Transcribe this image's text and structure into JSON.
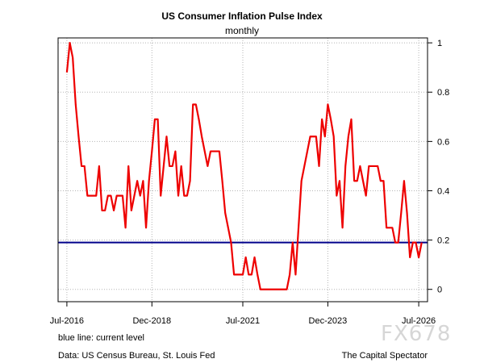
{
  "chart_data": {
    "type": "line",
    "title": "US Consumer Inflation Pulse Index",
    "subtitle": "monthly",
    "x_tick_labels": [
      "Jul-2016",
      "Dec-2018",
      "Jul-2021",
      "Dec-2023",
      "Jul-2026"
    ],
    "x_tick_dates": [
      "2016-07",
      "2018-12",
      "2021-07",
      "2023-12",
      "2026-07"
    ],
    "xlim": [
      "2016-04",
      "2026-10"
    ],
    "y_tick_labels": [
      "0",
      "0.2",
      "0.4",
      "0.6",
      "0.8",
      "1"
    ],
    "y_ticks": [
      0,
      0.2,
      0.4,
      0.6,
      0.8,
      1
    ],
    "ylim": [
      -0.05,
      1.02
    ],
    "y_axis_side": "right",
    "grid": true,
    "series": [
      {
        "color": "#ee0000",
        "points": [
          [
            "2016-07",
            0.88
          ],
          [
            "2016-08",
            1.0
          ],
          [
            "2016-09",
            0.94
          ],
          [
            "2016-10",
            0.75
          ],
          [
            "2016-11",
            0.62
          ],
          [
            "2016-12",
            0.5
          ],
          [
            "2017-01",
            0.5
          ],
          [
            "2017-02",
            0.38
          ],
          [
            "2017-03",
            0.38
          ],
          [
            "2017-04",
            0.38
          ],
          [
            "2017-05",
            0.38
          ],
          [
            "2017-06",
            0.5
          ],
          [
            "2017-07",
            0.32
          ],
          [
            "2017-08",
            0.32
          ],
          [
            "2017-09",
            0.38
          ],
          [
            "2017-10",
            0.38
          ],
          [
            "2017-11",
            0.32
          ],
          [
            "2017-12",
            0.38
          ],
          [
            "2018-01",
            0.38
          ],
          [
            "2018-02",
            0.38
          ],
          [
            "2018-03",
            0.25
          ],
          [
            "2018-04",
            0.5
          ],
          [
            "2018-05",
            0.32
          ],
          [
            "2018-06",
            0.38
          ],
          [
            "2018-07",
            0.44
          ],
          [
            "2018-08",
            0.38
          ],
          [
            "2018-09",
            0.44
          ],
          [
            "2018-10",
            0.25
          ],
          [
            "2018-11",
            0.44
          ],
          [
            "2018-12",
            0.56
          ],
          [
            "2019-01",
            0.69
          ],
          [
            "2019-02",
            0.69
          ],
          [
            "2019-03",
            0.38
          ],
          [
            "2019-04",
            0.5
          ],
          [
            "2019-05",
            0.62
          ],
          [
            "2019-06",
            0.5
          ],
          [
            "2019-07",
            0.5
          ],
          [
            "2019-08",
            0.56
          ],
          [
            "2019-09",
            0.38
          ],
          [
            "2019-10",
            0.5
          ],
          [
            "2019-11",
            0.38
          ],
          [
            "2019-12",
            0.38
          ],
          [
            "2020-01",
            0.44
          ],
          [
            "2020-02",
            0.75
          ],
          [
            "2020-03",
            0.75
          ],
          [
            "2020-04",
            0.69
          ],
          [
            "2020-05",
            0.62
          ],
          [
            "2020-06",
            0.56
          ],
          [
            "2020-07",
            0.5
          ],
          [
            "2020-08",
            0.56
          ],
          [
            "2020-09",
            0.56
          ],
          [
            "2020-10",
            0.56
          ],
          [
            "2020-11",
            0.56
          ],
          [
            "2020-12",
            0.44
          ],
          [
            "2021-01",
            0.31
          ],
          [
            "2021-02",
            0.25
          ],
          [
            "2021-03",
            0.19
          ],
          [
            "2021-04",
            0.06
          ],
          [
            "2021-05",
            0.06
          ],
          [
            "2021-06",
            0.06
          ],
          [
            "2021-07",
            0.06
          ],
          [
            "2021-08",
            0.13
          ],
          [
            "2021-09",
            0.06
          ],
          [
            "2021-10",
            0.06
          ],
          [
            "2021-11",
            0.13
          ],
          [
            "2021-12",
            0.06
          ],
          [
            "2022-01",
            0.0
          ],
          [
            "2022-02",
            0.0
          ],
          [
            "2022-03",
            0.0
          ],
          [
            "2022-04",
            0.0
          ],
          [
            "2022-05",
            0.0
          ],
          [
            "2022-06",
            0.0
          ],
          [
            "2022-07",
            0.0
          ],
          [
            "2022-08",
            0.0
          ],
          [
            "2022-09",
            0.0
          ],
          [
            "2022-10",
            0.0
          ],
          [
            "2022-11",
            0.06
          ],
          [
            "2022-12",
            0.19
          ],
          [
            "2023-01",
            0.06
          ],
          [
            "2023-02",
            0.25
          ],
          [
            "2023-03",
            0.44
          ],
          [
            "2023-04",
            0.5
          ],
          [
            "2023-05",
            0.56
          ],
          [
            "2023-06",
            0.62
          ],
          [
            "2023-07",
            0.62
          ],
          [
            "2023-08",
            0.62
          ],
          [
            "2023-09",
            0.5
          ],
          [
            "2023-10",
            0.69
          ],
          [
            "2023-11",
            0.62
          ],
          [
            "2023-12",
            0.75
          ],
          [
            "2024-01",
            0.69
          ],
          [
            "2024-02",
            0.62
          ],
          [
            "2024-03",
            0.38
          ],
          [
            "2024-04",
            0.44
          ],
          [
            "2024-05",
            0.25
          ],
          [
            "2024-06",
            0.5
          ],
          [
            "2024-07",
            0.62
          ],
          [
            "2024-08",
            0.69
          ],
          [
            "2024-09",
            0.44
          ],
          [
            "2024-10",
            0.44
          ],
          [
            "2024-11",
            0.5
          ],
          [
            "2024-12",
            0.44
          ],
          [
            "2025-01",
            0.38
          ],
          [
            "2025-02",
            0.5
          ],
          [
            "2025-03",
            0.5
          ],
          [
            "2025-04",
            0.5
          ],
          [
            "2025-05",
            0.5
          ],
          [
            "2025-06",
            0.44
          ],
          [
            "2025-07",
            0.44
          ],
          [
            "2025-08",
            0.25
          ],
          [
            "2025-09",
            0.25
          ],
          [
            "2025-10",
            0.25
          ],
          [
            "2025-11",
            0.19
          ],
          [
            "2025-12",
            0.19
          ],
          [
            "2026-01",
            0.31
          ],
          [
            "2026-02",
            0.44
          ],
          [
            "2026-03",
            0.31
          ],
          [
            "2026-04",
            0.13
          ],
          [
            "2026-05",
            0.19
          ],
          [
            "2026-06",
            0.19
          ],
          [
            "2026-07",
            0.13
          ],
          [
            "2026-08",
            0.19
          ]
        ]
      }
    ],
    "reference_line": {
      "value": 0.19,
      "color": "#00008b"
    }
  },
  "notes": {
    "current_level": "blue line: current level",
    "source": "Data: US Census Bureau, St. Louis Fed",
    "credit": "The Capital Spectator"
  },
  "watermark": "FX678"
}
